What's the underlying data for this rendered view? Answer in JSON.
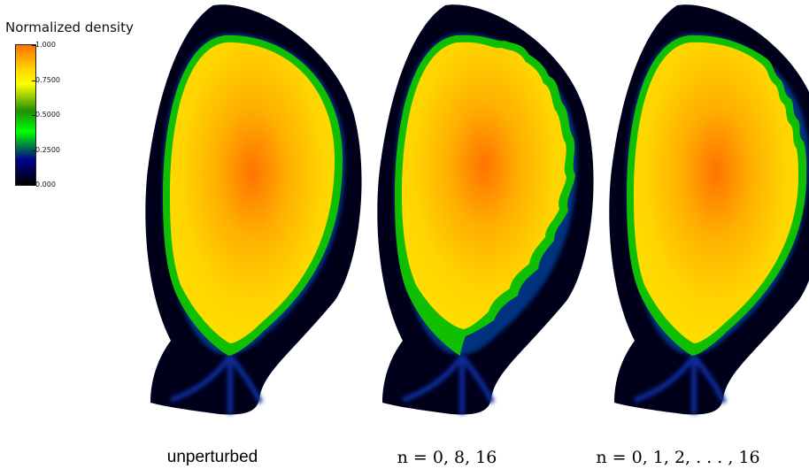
{
  "colorbar": {
    "title": "Normalized density",
    "ticks": [
      "1.000",
      "0.7500",
      "0.5000",
      "0.2500",
      "0.000"
    ],
    "tick_values": [
      1.0,
      0.75,
      0.5,
      0.25,
      0.0
    ],
    "colors": [
      "#ff7000",
      "#ffd800",
      "#ffff00",
      "#1f8f00",
      "#00ff00",
      "#00008a",
      "#000000"
    ]
  },
  "panels": [
    {
      "caption": "unperturbed"
    },
    {
      "caption": "n = 0, 8, 16"
    },
    {
      "caption": "n = 0, 1, 2, . . . , 16"
    }
  ]
}
